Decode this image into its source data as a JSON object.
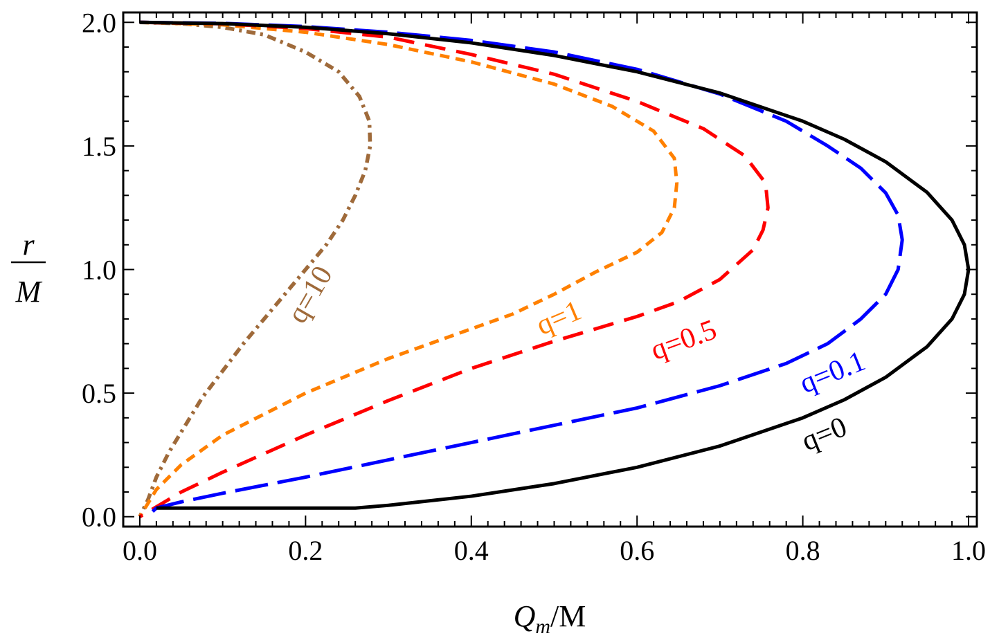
{
  "chart_data": {
    "type": "line",
    "title": "",
    "xlabel": {
      "main": "Q",
      "sub": "m",
      "rest": "/M"
    },
    "ylabel": {
      "numerator": "r",
      "denominator": "M"
    },
    "xlim": [
      -0.02,
      1.01
    ],
    "ylim": [
      -0.04,
      2.04
    ],
    "grid": false,
    "legend": "none",
    "x_ticks": [
      {
        "value": 0.0,
        "label": "0.0"
      },
      {
        "value": 0.2,
        "label": "0.2"
      },
      {
        "value": 0.4,
        "label": "0.4"
      },
      {
        "value": 0.6,
        "label": "0.6"
      },
      {
        "value": 0.8,
        "label": "0.8"
      },
      {
        "value": 1.0,
        "label": "1.0"
      }
    ],
    "y_ticks": [
      {
        "value": 0.0,
        "label": "0.0"
      },
      {
        "value": 0.5,
        "label": "0.5"
      },
      {
        "value": 1.0,
        "label": "1.0"
      },
      {
        "value": 1.5,
        "label": "1.5"
      },
      {
        "value": 2.0,
        "label": "2.0"
      }
    ],
    "series": [
      {
        "name": "q=0",
        "label": "q=0",
        "color": "#000000",
        "dash": "solid",
        "label_pos": {
          "x": 0.83,
          "y": 0.3,
          "angle": -22
        },
        "points": [
          [
            0.0,
            2.0
          ],
          [
            0.1,
            1.995
          ],
          [
            0.2,
            1.98
          ],
          [
            0.3,
            1.954
          ],
          [
            0.4,
            1.917
          ],
          [
            0.5,
            1.866
          ],
          [
            0.6,
            1.8
          ],
          [
            0.7,
            1.714
          ],
          [
            0.8,
            1.6
          ],
          [
            0.85,
            1.527
          ],
          [
            0.9,
            1.436
          ],
          [
            0.95,
            1.312
          ],
          [
            0.98,
            1.2
          ],
          [
            0.995,
            1.1
          ],
          [
            1.0,
            1.0
          ],
          [
            0.995,
            0.9
          ],
          [
            0.98,
            0.8
          ],
          [
            0.95,
            0.688
          ],
          [
            0.9,
            0.564
          ],
          [
            0.85,
            0.473
          ],
          [
            0.8,
            0.4
          ],
          [
            0.7,
            0.286
          ],
          [
            0.6,
            0.2
          ],
          [
            0.5,
            0.134
          ],
          [
            0.4,
            0.083
          ],
          [
            0.3,
            0.046
          ],
          [
            0.26,
            0.035
          ],
          [
            0.25,
            0.035
          ],
          [
            0.02,
            0.035
          ]
        ]
      },
      {
        "name": "q=0.1",
        "label": "q=0.1",
        "color": "#0000ff",
        "dash": "longdash",
        "label_pos": {
          "x": 0.84,
          "y": 0.55,
          "angle": -22
        },
        "points": [
          [
            0.0,
            2.0
          ],
          [
            0.1,
            1.996
          ],
          [
            0.2,
            1.983
          ],
          [
            0.3,
            1.96
          ],
          [
            0.4,
            1.927
          ],
          [
            0.5,
            1.88
          ],
          [
            0.6,
            1.81
          ],
          [
            0.7,
            1.71
          ],
          [
            0.78,
            1.6
          ],
          [
            0.83,
            1.5
          ],
          [
            0.87,
            1.41
          ],
          [
            0.9,
            1.31
          ],
          [
            0.915,
            1.22
          ],
          [
            0.92,
            1.12
          ],
          [
            0.915,
            1.0
          ],
          [
            0.9,
            0.9
          ],
          [
            0.87,
            0.8
          ],
          [
            0.83,
            0.7
          ],
          [
            0.78,
            0.62
          ],
          [
            0.7,
            0.53
          ],
          [
            0.6,
            0.44
          ],
          [
            0.5,
            0.37
          ],
          [
            0.4,
            0.3
          ],
          [
            0.3,
            0.23
          ],
          [
            0.2,
            0.16
          ],
          [
            0.1,
            0.095
          ],
          [
            0.05,
            0.06
          ],
          [
            0.02,
            0.035
          ],
          [
            0.015,
            0.02
          ],
          [
            0.022,
            0.01
          ]
        ]
      },
      {
        "name": "q=0.5",
        "label": "q=0.5",
        "color": "#ff0000",
        "dash": "dash",
        "label_pos": {
          "x": 0.66,
          "y": 0.68,
          "angle": -20
        },
        "points": [
          [
            0.0,
            2.0
          ],
          [
            0.1,
            1.994
          ],
          [
            0.2,
            1.975
          ],
          [
            0.3,
            1.94
          ],
          [
            0.4,
            1.87
          ],
          [
            0.5,
            1.79
          ],
          [
            0.6,
            1.68
          ],
          [
            0.68,
            1.57
          ],
          [
            0.73,
            1.46
          ],
          [
            0.755,
            1.35
          ],
          [
            0.758,
            1.25
          ],
          [
            0.752,
            1.16
          ],
          [
            0.74,
            1.08
          ],
          [
            0.7,
            0.96
          ],
          [
            0.65,
            0.87
          ],
          [
            0.6,
            0.81
          ],
          [
            0.5,
            0.71
          ],
          [
            0.4,
            0.6
          ],
          [
            0.3,
            0.47
          ],
          [
            0.2,
            0.33
          ],
          [
            0.1,
            0.18
          ],
          [
            0.05,
            0.1
          ],
          [
            0.0,
            0.0
          ]
        ]
      },
      {
        "name": "q=1",
        "label": "q=1",
        "color": "#ff8000",
        "dash": "shortdash",
        "label_pos": {
          "x": 0.51,
          "y": 0.77,
          "angle": -23
        },
        "points": [
          [
            0.0,
            2.0
          ],
          [
            0.1,
            1.99
          ],
          [
            0.2,
            1.96
          ],
          [
            0.3,
            1.91
          ],
          [
            0.4,
            1.84
          ],
          [
            0.5,
            1.75
          ],
          [
            0.57,
            1.66
          ],
          [
            0.62,
            1.56
          ],
          [
            0.645,
            1.45
          ],
          [
            0.648,
            1.35
          ],
          [
            0.645,
            1.25
          ],
          [
            0.63,
            1.15
          ],
          [
            0.6,
            1.07
          ],
          [
            0.55,
            0.99
          ],
          [
            0.5,
            0.9
          ],
          [
            0.45,
            0.82
          ],
          [
            0.4,
            0.76
          ],
          [
            0.3,
            0.64
          ],
          [
            0.2,
            0.5
          ],
          [
            0.1,
            0.33
          ],
          [
            0.05,
            0.21
          ],
          [
            0.02,
            0.11
          ],
          [
            0.0,
            0.0
          ]
        ]
      },
      {
        "name": "q=10",
        "label": "q=10",
        "color": "#9f6a3a",
        "dash": "dashdot",
        "label_pos": {
          "x": 0.215,
          "y": 0.88,
          "angle": -60
        },
        "points": [
          [
            0.0,
            2.0
          ],
          [
            0.05,
            1.995
          ],
          [
            0.1,
            1.98
          ],
          [
            0.15,
            1.95
          ],
          [
            0.2,
            1.88
          ],
          [
            0.24,
            1.8
          ],
          [
            0.265,
            1.7
          ],
          [
            0.277,
            1.6
          ],
          [
            0.278,
            1.5
          ],
          [
            0.272,
            1.4
          ],
          [
            0.26,
            1.3
          ],
          [
            0.245,
            1.2
          ],
          [
            0.225,
            1.1
          ],
          [
            0.2,
            1.0
          ],
          [
            0.175,
            0.9
          ],
          [
            0.15,
            0.8
          ],
          [
            0.125,
            0.7
          ],
          [
            0.1,
            0.59
          ],
          [
            0.075,
            0.48
          ],
          [
            0.055,
            0.37
          ],
          [
            0.035,
            0.26
          ],
          [
            0.02,
            0.16
          ],
          [
            0.01,
            0.07
          ],
          [
            0.0,
            0.0
          ]
        ]
      }
    ]
  }
}
